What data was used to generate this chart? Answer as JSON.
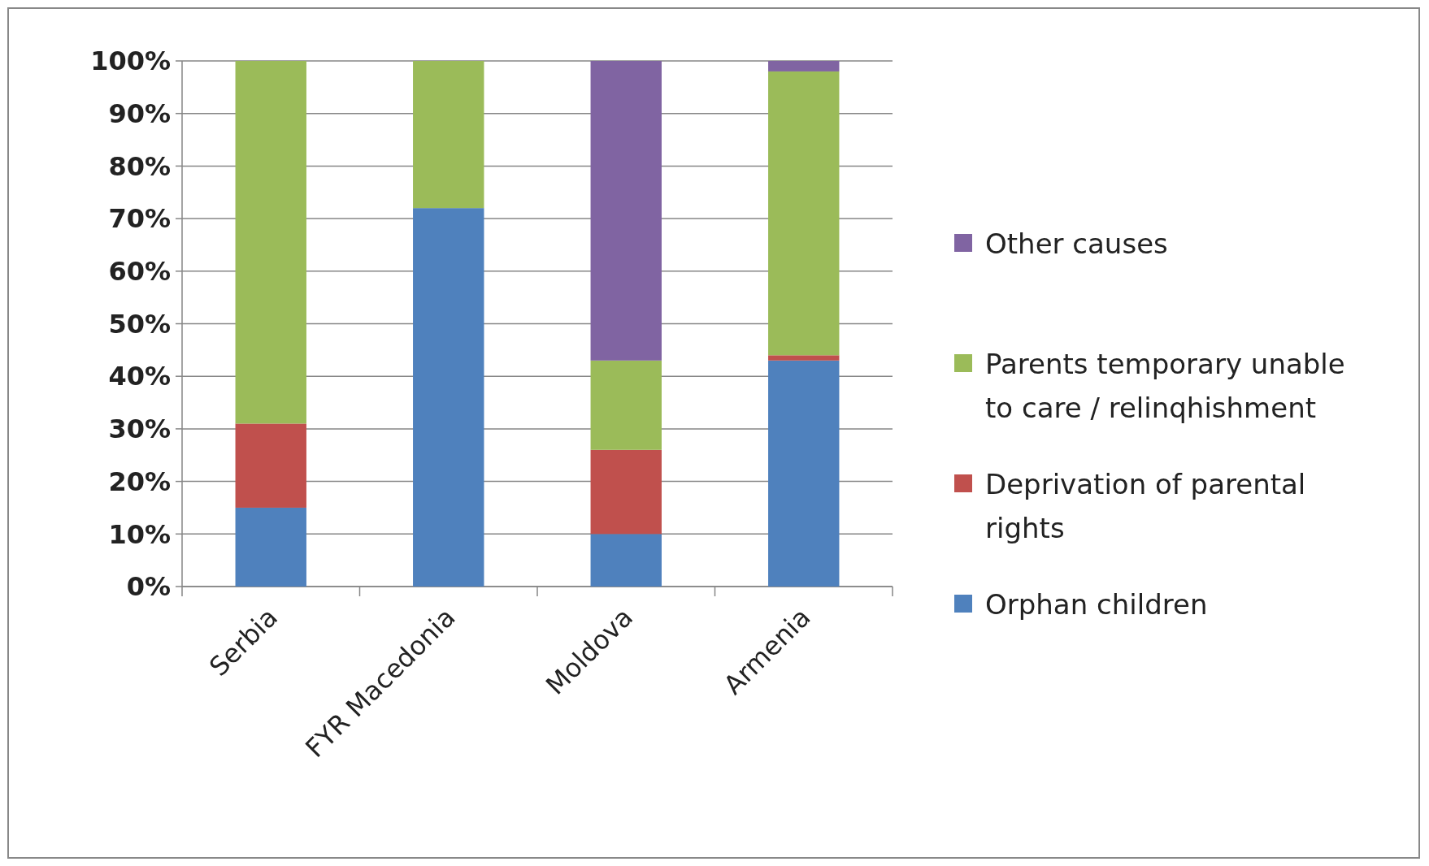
{
  "chart_data": {
    "type": "bar",
    "stacked": true,
    "categories": [
      "Serbia",
      "FYR Macedonia",
      "Moldova",
      "Armenia"
    ],
    "series": [
      {
        "name": "Orphan children",
        "color": "#4f81bd",
        "values": [
          15,
          72,
          10,
          43
        ]
      },
      {
        "name": "Deprivation of parental rights",
        "color": "#c0504d",
        "values": [
          16,
          0,
          16,
          1
        ]
      },
      {
        "name": "Parents temporary unable to care / relinqhishment",
        "color": "#9bbb59",
        "values": [
          69,
          28,
          17,
          54
        ]
      },
      {
        "name": "Other causes",
        "color": "#8064a2",
        "values": [
          0,
          0,
          57,
          2
        ]
      }
    ],
    "ylim": [
      0,
      100
    ],
    "yticks": [
      {
        "value": 0,
        "label": "0%"
      },
      {
        "value": 10,
        "label": "10%"
      },
      {
        "value": 20,
        "label": "20%"
      },
      {
        "value": 30,
        "label": "30%"
      },
      {
        "value": 40,
        "label": "40%"
      },
      {
        "value": 50,
        "label": "50%"
      },
      {
        "value": 60,
        "label": "60%"
      },
      {
        "value": 70,
        "label": "70%"
      },
      {
        "value": 80,
        "label": "80%"
      },
      {
        "value": 90,
        "label": "90%"
      },
      {
        "value": 100,
        "label": "100%"
      }
    ],
    "grid": "y",
    "legend": "right"
  }
}
